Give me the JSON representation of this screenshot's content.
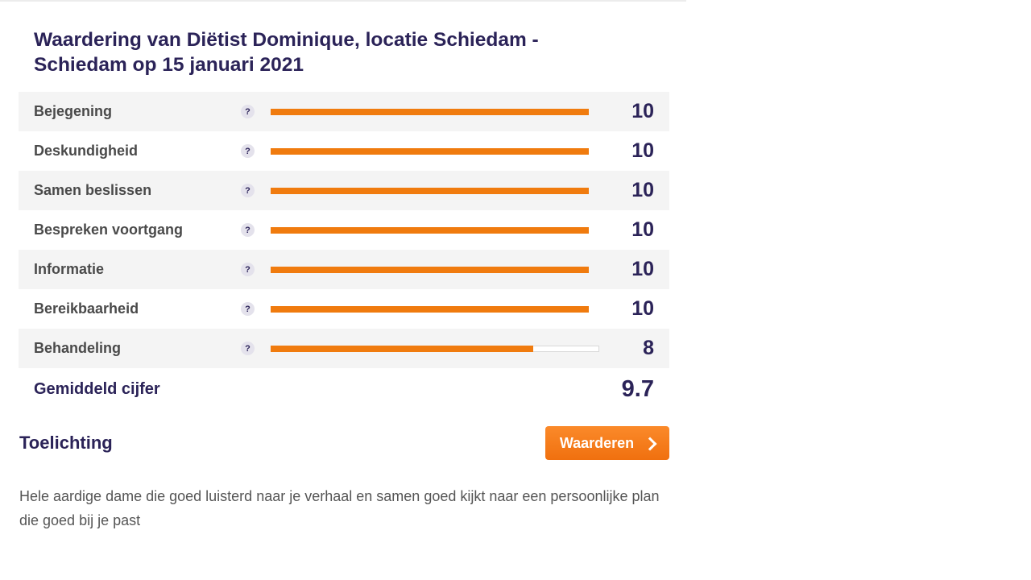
{
  "title": "Waardering van Diëtist Dominique, locatie Schiedam - Schiedam op 15 januari 2021",
  "help_symbol": "?",
  "scale_max": 10,
  "accent_color": "#f07b0e",
  "text_color": "#2b2358",
  "ratings": [
    {
      "label": "Bejegening",
      "score": "10",
      "value": 10
    },
    {
      "label": "Deskundigheid",
      "score": "10",
      "value": 10
    },
    {
      "label": "Samen beslissen",
      "score": "10",
      "value": 10
    },
    {
      "label": "Bespreken voortgang",
      "score": "10",
      "value": 10
    },
    {
      "label": "Informatie",
      "score": "10",
      "value": 10
    },
    {
      "label": "Bereikbaarheid",
      "score": "10",
      "value": 10
    },
    {
      "label": "Behandeling",
      "score": "8",
      "value": 8
    }
  ],
  "average": {
    "label": "Gemiddeld cijfer",
    "score": "9.7"
  },
  "toelichting": {
    "heading": "Toelichting",
    "button_label": "Waarderen",
    "button_icon": "chevron-right-icon",
    "text": "Hele aardige dame die goed luisterd naar je verhaal en samen goed kijkt naar een persoonlijke plan die goed bij je past"
  }
}
